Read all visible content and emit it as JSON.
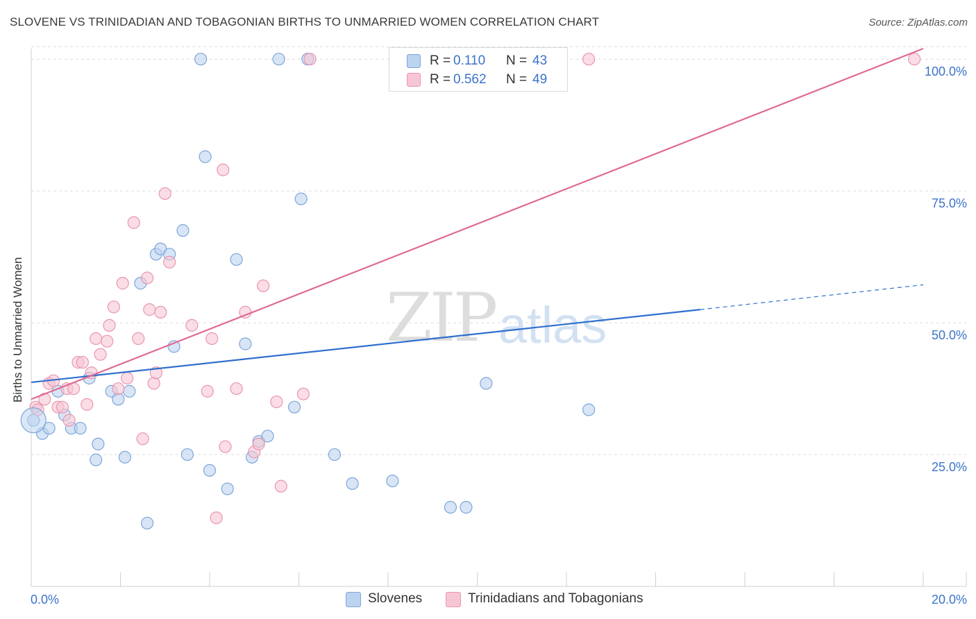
{
  "title": "SLOVENE VS TRINIDADIAN AND TOBAGONIAN BIRTHS TO UNMARRIED WOMEN CORRELATION CHART",
  "source": "Source: ZipAtlas.com",
  "watermark": {
    "zip": "ZIP",
    "atlas": "atlas"
  },
  "legend": {
    "rows": [
      {
        "r_label": "R =",
        "r_value": "0.110",
        "n_label": "N =",
        "n_value": "43"
      },
      {
        "r_label": "R =",
        "r_value": "0.562",
        "n_label": "N =",
        "n_value": "49"
      }
    ]
  },
  "bottom_legend": [
    "Slovenes",
    "Trinidadians and Tobagonians"
  ],
  "colors": {
    "blue_fill": "#bcd3f0",
    "blue_stroke": "#7ea6d8",
    "blue_line": "#2f6fcf",
    "pink_fill": "#f7c6d4",
    "pink_stroke": "#e996b0",
    "pink_line": "#e06a93",
    "grid": "#dcdcdc",
    "tick_text": "#3b73c9"
  },
  "chart_data": {
    "type": "scatter",
    "title": "SLOVENE VS TRINIDADIAN AND TOBAGONIAN BIRTHS TO UNMARRIED WOMEN CORRELATION CHART",
    "xlabel": "",
    "ylabel": "Births to Unmarried Women",
    "xlim": [
      0,
      20
    ],
    "ylim": [
      0,
      102
    ],
    "x_tick_labels": [
      "0.0%",
      "20.0%"
    ],
    "y_ticks": [
      25,
      50,
      75,
      100
    ],
    "y_tick_labels": [
      "25.0%",
      "50.0%",
      "75.0%",
      "100.0%"
    ],
    "grid": "horizontal dashed",
    "legend_position": "top-center",
    "series": [
      {
        "name": "Slovenes",
        "color": "#bcd3f0",
        "points": [
          [
            0.05,
            31.5
          ],
          [
            0.25,
            29
          ],
          [
            0.4,
            30
          ],
          [
            0.6,
            37
          ],
          [
            0.75,
            32.5
          ],
          [
            0.9,
            30
          ],
          [
            1.1,
            30
          ],
          [
            1.3,
            39.5
          ],
          [
            1.5,
            27
          ],
          [
            1.45,
            24
          ],
          [
            1.8,
            37
          ],
          [
            1.95,
            35.5
          ],
          [
            2.1,
            24.5
          ],
          [
            2.2,
            37
          ],
          [
            2.45,
            57.5
          ],
          [
            2.6,
            12
          ],
          [
            2.8,
            63
          ],
          [
            2.9,
            64
          ],
          [
            3.1,
            63
          ],
          [
            3.2,
            45.5
          ],
          [
            3.4,
            67.5
          ],
          [
            3.5,
            25
          ],
          [
            3.8,
            100
          ],
          [
            3.9,
            81.5
          ],
          [
            4.0,
            22
          ],
          [
            4.4,
            18.5
          ],
          [
            4.6,
            62
          ],
          [
            4.8,
            46
          ],
          [
            4.95,
            24.5
          ],
          [
            5.1,
            27.5
          ],
          [
            5.3,
            28.5
          ],
          [
            5.55,
            100
          ],
          [
            5.9,
            34
          ],
          [
            6.05,
            73.5
          ],
          [
            6.2,
            100
          ],
          [
            6.8,
            25
          ],
          [
            7.2,
            19.5
          ],
          [
            8.1,
            20
          ],
          [
            9.4,
            15
          ],
          [
            9.75,
            15
          ],
          [
            10.2,
            38.5
          ],
          [
            11.2,
            100
          ],
          [
            12.5,
            33.5
          ]
        ]
      },
      {
        "name": "Trinidadians and Tobagonians",
        "color": "#f7c6d4",
        "points": [
          [
            0.1,
            34
          ],
          [
            0.15,
            33.5
          ],
          [
            0.3,
            35.5
          ],
          [
            0.4,
            38.5
          ],
          [
            0.5,
            39
          ],
          [
            0.6,
            34
          ],
          [
            0.7,
            34
          ],
          [
            0.8,
            37.5
          ],
          [
            0.85,
            31.5
          ],
          [
            0.95,
            37.5
          ],
          [
            1.05,
            42.5
          ],
          [
            1.15,
            42.5
          ],
          [
            1.25,
            34.5
          ],
          [
            1.35,
            40.5
          ],
          [
            1.45,
            47
          ],
          [
            1.55,
            44
          ],
          [
            1.7,
            46.5
          ],
          [
            1.75,
            49.5
          ],
          [
            1.85,
            53
          ],
          [
            1.95,
            37.5
          ],
          [
            2.05,
            57.5
          ],
          [
            2.15,
            39.5
          ],
          [
            2.3,
            69
          ],
          [
            2.4,
            47
          ],
          [
            2.5,
            28
          ],
          [
            2.6,
            58.5
          ],
          [
            2.65,
            52.5
          ],
          [
            2.75,
            38.5
          ],
          [
            2.8,
            40.5
          ],
          [
            2.9,
            52
          ],
          [
            3.0,
            74.5
          ],
          [
            3.1,
            61.5
          ],
          [
            3.6,
            49.5
          ],
          [
            3.95,
            37
          ],
          [
            4.05,
            47
          ],
          [
            4.15,
            13
          ],
          [
            4.3,
            79
          ],
          [
            4.35,
            26.5
          ],
          [
            4.6,
            37.5
          ],
          [
            4.8,
            52
          ],
          [
            5.0,
            25.5
          ],
          [
            5.1,
            27
          ],
          [
            5.2,
            57
          ],
          [
            5.5,
            35
          ],
          [
            5.6,
            19
          ],
          [
            6.1,
            36.5
          ],
          [
            6.25,
            100
          ],
          [
            12.5,
            100
          ],
          [
            19.8,
            100
          ]
        ]
      }
    ],
    "trend_lines": [
      {
        "series": "Slovenes",
        "x": [
          0,
          15
        ],
        "y": [
          38.7,
          52.5
        ],
        "dashed_extension_to_x": 20,
        "dashed_extension_y": 57.2
      },
      {
        "series": "Trinidadians and Tobagonians",
        "x": [
          0,
          20
        ],
        "y": [
          35.5,
          102
        ]
      }
    ]
  }
}
